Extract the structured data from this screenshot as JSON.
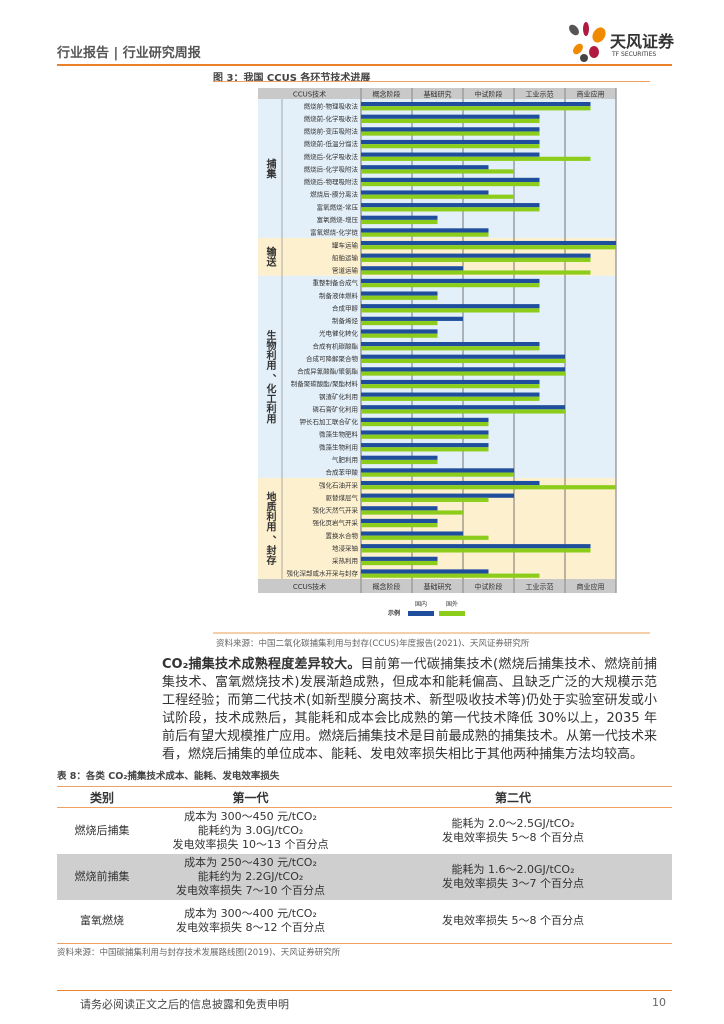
{
  "header": {
    "title": "行业报告 | 行业研究周报",
    "logo_cn": "天风证券",
    "logo_en": "TF SECURITIES"
  },
  "figure": {
    "title": "图 3：我国 CCUS 各环节技术进展",
    "source": "资料来源：中国二氧化碳捕集利用与封存(CCUS)年度报告(2021)、天风证券研究所"
  },
  "chart_data": {
    "type": "bar",
    "orientation": "horizontal",
    "column_header": "CCUS技术",
    "stages": [
      "概念阶段",
      "基础研究",
      "中试阶段",
      "工业示范",
      "商业应用"
    ],
    "xlim": [
      0,
      5
    ],
    "legend": {
      "title": "示例",
      "placement": "bottom"
    },
    "series": [
      {
        "name": "国内",
        "color": "#1f4e9c"
      },
      {
        "name": "国外",
        "color": "#8ccd1c"
      }
    ],
    "groups": [
      {
        "name": "捕集",
        "bg": "#e4f0f9",
        "items": [
          {
            "label": "燃烧前-物理吸收法",
            "values": [
              4.5,
              4.5
            ]
          },
          {
            "label": "燃烧前-化学吸收法",
            "values": [
              3.5,
              3.5
            ]
          },
          {
            "label": "燃烧前-变压吸附法",
            "values": [
              3.5,
              3.5
            ]
          },
          {
            "label": "燃烧前-低温分馏法",
            "values": [
              3.5,
              3.5
            ]
          },
          {
            "label": "燃烧后-化学吸收法",
            "values": [
              3.5,
              4.5
            ]
          },
          {
            "label": "燃烧后-化学吸附法",
            "values": [
              2.5,
              3
            ]
          },
          {
            "label": "燃烧后-物理吸附法",
            "values": [
              3.5,
              3.5
            ]
          },
          {
            "label": "燃烧后-膜分离法",
            "values": [
              2.5,
              3
            ]
          },
          {
            "label": "富氧燃烧-常压",
            "values": [
              3.5,
              3.5
            ]
          },
          {
            "label": "富氧燃烧-增压",
            "values": [
              1.5,
              1.5
            ]
          },
          {
            "label": "富氧燃烧-化学链",
            "values": [
              2.5,
              2.5
            ]
          }
        ]
      },
      {
        "name": "输送",
        "bg": "#fdf0cf",
        "items": [
          {
            "label": "罐车运输",
            "values": [
              5,
              5
            ]
          },
          {
            "label": "船舶运输",
            "values": [
              4.5,
              4.5
            ]
          },
          {
            "label": "管道运输",
            "values": [
              2,
              4.5
            ]
          }
        ]
      },
      {
        "name": "生物利用 、化工利用",
        "bg": "#e4f0f9",
        "items": [
          {
            "label": "重整制备合成气",
            "values": [
              3.5,
              3.5
            ]
          },
          {
            "label": "制备液体燃料",
            "values": [
              1.5,
              1.5
            ]
          },
          {
            "label": "合成甲醇",
            "values": [
              3.5,
              3.5
            ]
          },
          {
            "label": "制备烯烃",
            "values": [
              2,
              1.5
            ]
          },
          {
            "label": "光电催化转化",
            "values": [
              1.5,
              1.5
            ]
          },
          {
            "label": "合成有机碳酸酯",
            "values": [
              3.5,
              3.5
            ]
          },
          {
            "label": "合成可降解聚合物",
            "values": [
              4,
              4
            ]
          },
          {
            "label": "合成异氰酸酯/聚氨酯",
            "values": [
              4,
              4
            ]
          },
          {
            "label": "制备聚碳酸酯/聚酯材料",
            "values": [
              3.5,
              3.5
            ]
          },
          {
            "label": "钢渣矿化利用",
            "values": [
              3.5,
              3.5
            ]
          },
          {
            "label": "磷石膏矿化利用",
            "values": [
              4,
              4
            ]
          },
          {
            "label": "钾长石加工联合矿化",
            "values": [
              2.5,
              2.5
            ]
          },
          {
            "label": "微藻生物肥料",
            "values": [
              2.5,
              2.5
            ]
          },
          {
            "label": "微藻生物利用",
            "values": [
              2.5,
              2.5
            ]
          },
          {
            "label": "气肥利用",
            "values": [
              1.5,
              1.5
            ]
          },
          {
            "label": "合成苯甲酸",
            "values": [
              3,
              3
            ]
          }
        ]
      },
      {
        "name": "地质利用 、封存",
        "bg": "#fdf0cf",
        "items": [
          {
            "label": "强化石油开采",
            "values": [
              3.5,
              5
            ]
          },
          {
            "label": "驱替煤层气",
            "values": [
              3,
              2.5
            ]
          },
          {
            "label": "强化天然气开采",
            "values": [
              1.5,
              2
            ]
          },
          {
            "label": "强化页岩气开采",
            "values": [
              1.5,
              1.5
            ]
          },
          {
            "label": "置换水合物",
            "values": [
              2,
              2.5
            ]
          },
          {
            "label": "地浸采铀",
            "values": [
              4.5,
              4.5
            ]
          },
          {
            "label": "采热利用",
            "values": [
              1.5,
              1.5
            ]
          },
          {
            "label": "强化深部咸水开采与封存",
            "values": [
              2.5,
              3.5
            ]
          }
        ]
      }
    ]
  },
  "body": {
    "lead": "CO₂捕集技术成熟程度差异较大。",
    "text": "目前第一代碳捕集技术(燃烧后捕集技术、燃烧前捕集技术、富氧燃烧技术)发展渐趋成熟，但成本和能耗偏高、且缺乏广泛的大规模示范工程经验；而第二代技术(如新型膜分离技术、新型吸收技术等)仍处于实验室研发或小试阶段，技术成熟后，其能耗和成本会比成熟的第一代技术降低 30%以上，2035 年前后有望大规模推广应用。燃烧后捕集技术是目前最成熟的捕集技术。从第一代技术来看，燃烧后捕集的单位成本、能耗、发电效率损失相比于其他两种捕集方法均较高。"
  },
  "table": {
    "title": "表 8：各类 CO₂捕集技术成本、能耗、发电效率损失",
    "headers": [
      "类别",
      "第一代",
      "第二代"
    ],
    "rows": [
      {
        "category": "燃烧后捕集",
        "gen1": [
          "成本为 300～450 元/tCO₂",
          "能耗约为 3.0GJ/tCO₂",
          "发电效率损失 10～13 个百分点"
        ],
        "gen2": [
          "能耗为 2.0～2.5GJ/tCO₂",
          "发电效率损失 5～8 个百分点"
        ]
      },
      {
        "category": "燃烧前捕集",
        "gen1": [
          "成本为 250～430 元/tCO₂",
          "能耗约为 2.2GJ/tCO₂",
          "发电效率损失 7～10 个百分点"
        ],
        "gen2": [
          "能耗为 1.6～2.0GJ/tCO₂",
          "发电效率损失 3～7 个百分点"
        ]
      },
      {
        "category": "富氧燃烧",
        "gen1": [
          "成本为 300～400 元/tCO₂",
          "发电效率损失 8～12 个百分点"
        ],
        "gen2": [
          "发电效率损失 5～8 个百分点"
        ]
      }
    ],
    "source": "资料来源：中国碳捕集利用与封存技术发展路线图(2019)、天风证券研究所"
  },
  "footer": {
    "disclaimer": "请务必阅读正文之后的信息披露和免责申明",
    "page": "10"
  }
}
